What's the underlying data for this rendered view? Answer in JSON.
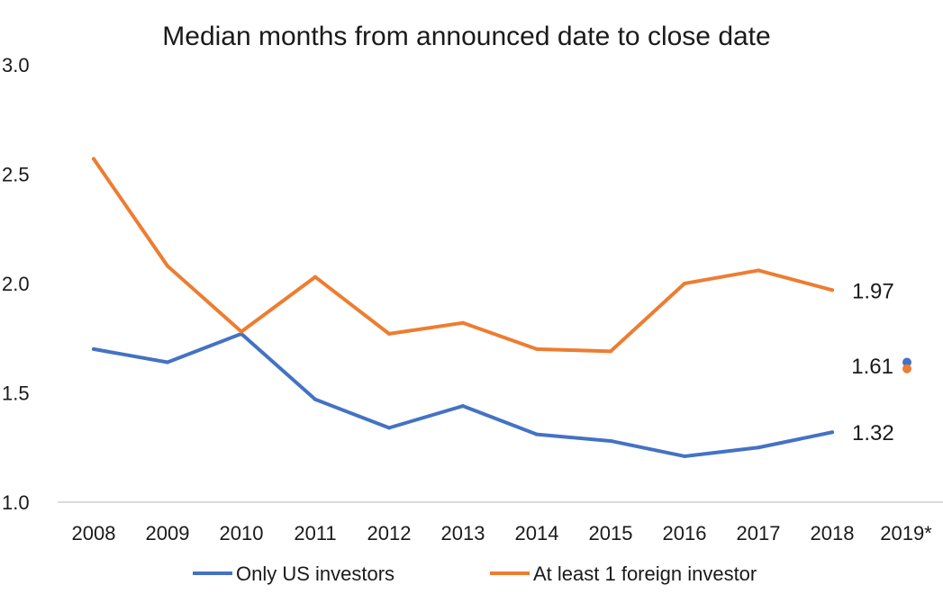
{
  "chart_data": {
    "type": "line",
    "title": "Median months from announced date to close date",
    "xlabel": "",
    "ylabel": "",
    "categories": [
      "2008",
      "2009",
      "2010",
      "2011",
      "2012",
      "2013",
      "2014",
      "2015",
      "2016",
      "2017",
      "2018",
      "2019*"
    ],
    "ylim": [
      1.0,
      3.0
    ],
    "yticks": [
      "1.0",
      "1.5",
      "2.0",
      "2.5",
      "3.0"
    ],
    "grid": false,
    "legend_position": "bottom",
    "series": [
      {
        "name": "Only US investors",
        "color": "#4472C4",
        "values": [
          1.7,
          1.64,
          1.77,
          1.47,
          1.34,
          1.44,
          1.31,
          1.28,
          1.21,
          1.25,
          1.32,
          null
        ],
        "point": {
          "x": "2019*",
          "y": 1.64
        }
      },
      {
        "name": "At least 1 foreign investor",
        "color": "#ED7D31",
        "values": [
          2.57,
          2.08,
          1.78,
          2.03,
          1.77,
          1.82,
          1.7,
          1.69,
          2.0,
          2.06,
          1.97,
          null
        ],
        "point": {
          "x": "2019*",
          "y": 1.61
        }
      }
    ],
    "data_labels": [
      {
        "text": "1.97",
        "x": "2018",
        "y": 1.97
      },
      {
        "text": "1.32",
        "x": "2018",
        "y": 1.32
      },
      {
        "text": "1.61",
        "x": "2019*",
        "y": 1.625
      }
    ]
  }
}
